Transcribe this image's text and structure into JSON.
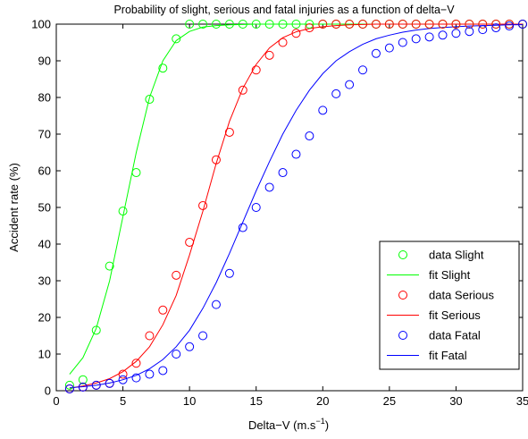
{
  "chart_data": {
    "type": "scatter",
    "title": "Probability of slight, serious and fatal injuries as a function of delta−V",
    "xlabel": "Delta−V (m.s",
    "xlabel_sup": "−1",
    "xlabel_suffix": ")",
    "ylabel": "Accident rate (%)",
    "xlim": [
      0,
      35
    ],
    "ylim": [
      0,
      100
    ],
    "xticks": [
      0,
      5,
      10,
      15,
      20,
      25,
      30,
      35
    ],
    "yticks": [
      0,
      10,
      20,
      30,
      40,
      50,
      60,
      70,
      80,
      90,
      100
    ],
    "grid": false,
    "legend_position": "bottom-right",
    "series": [
      {
        "name": "data Slight",
        "kind": "markers",
        "color": "#00ff00",
        "x": [
          1,
          2,
          3,
          4,
          5,
          6,
          7,
          8,
          9,
          10,
          11,
          12,
          13,
          14,
          15,
          16,
          17,
          18,
          19,
          20,
          21,
          22,
          23,
          24,
          25,
          26,
          27,
          28,
          29,
          30,
          31,
          32,
          33,
          34,
          35
        ],
        "y": [
          1.5,
          3,
          16.5,
          34,
          49,
          59.5,
          79.5,
          88,
          96,
          100,
          100,
          100,
          100,
          100,
          100,
          100,
          100,
          100,
          100,
          100,
          100,
          100,
          100,
          100,
          100,
          100,
          100,
          100,
          100,
          100,
          100,
          100,
          100,
          100,
          100
        ]
      },
      {
        "name": "fit Slight",
        "kind": "line",
        "color": "#00ff00",
        "x": [
          1,
          2,
          3,
          4,
          5,
          6,
          7,
          8,
          9,
          10,
          11,
          12,
          13,
          14,
          15,
          16,
          17,
          18,
          19,
          20,
          21,
          22,
          23,
          24,
          25,
          26,
          27,
          28,
          29,
          30,
          31,
          32,
          33,
          34,
          35
        ],
        "y": [
          4.5,
          9,
          17,
          30,
          47.5,
          65,
          80,
          90,
          95.5,
          98,
          99.2,
          99.6,
          99.8,
          99.9,
          100,
          100,
          100,
          100,
          100,
          100,
          100,
          100,
          100,
          100,
          100,
          100,
          100,
          100,
          100,
          100,
          100,
          100,
          100,
          100,
          100
        ]
      },
      {
        "name": "data Serious",
        "kind": "markers",
        "color": "#ff0000",
        "x": [
          1,
          2,
          3,
          4,
          5,
          6,
          7,
          8,
          9,
          10,
          11,
          12,
          13,
          14,
          15,
          16,
          17,
          18,
          19,
          20,
          21,
          22,
          23,
          24,
          25,
          26,
          27,
          28,
          29,
          30,
          31,
          32,
          33,
          34,
          35
        ],
        "y": [
          0.5,
          1,
          1.5,
          2,
          4.5,
          7.5,
          15,
          22,
          31.5,
          40.5,
          50.5,
          63,
          70.5,
          82,
          87.5,
          91.5,
          95,
          97.5,
          99,
          100,
          100,
          100,
          100,
          100,
          100,
          100,
          100,
          100,
          100,
          100,
          100,
          100,
          100,
          100,
          100
        ]
      },
      {
        "name": "fit Serious",
        "kind": "line",
        "color": "#ff0000",
        "x": [
          1,
          2,
          3,
          4,
          5,
          6,
          7,
          8,
          9,
          10,
          11,
          12,
          13,
          14,
          15,
          16,
          17,
          18,
          19,
          20,
          21,
          22,
          23,
          24,
          25,
          26,
          27,
          28,
          29,
          30,
          31,
          32,
          33,
          34,
          35
        ],
        "y": [
          0.7,
          1.3,
          2.1,
          3.3,
          5.2,
          8,
          12,
          18,
          26,
          37,
          49,
          62,
          73.5,
          82.5,
          89,
          93.5,
          96.3,
          97.9,
          98.8,
          99.3,
          99.6,
          99.8,
          99.9,
          100,
          100,
          100,
          100,
          100,
          100,
          100,
          100,
          100,
          100,
          100,
          100
        ]
      },
      {
        "name": "data Fatal",
        "kind": "markers",
        "color": "#0000ff",
        "x": [
          1,
          2,
          3,
          4,
          5,
          6,
          7,
          8,
          9,
          10,
          11,
          12,
          13,
          14,
          15,
          16,
          17,
          18,
          19,
          20,
          21,
          22,
          23,
          24,
          25,
          26,
          27,
          28,
          29,
          30,
          31,
          32,
          33,
          34,
          35
        ],
        "y": [
          0.5,
          1,
          1.5,
          2,
          3,
          3.5,
          4.5,
          5.5,
          10,
          12,
          15,
          23.5,
          32,
          44.5,
          50,
          55.5,
          59.5,
          64.5,
          69.5,
          76.5,
          81,
          83.5,
          87.5,
          92,
          93.5,
          95,
          96,
          96.5,
          97,
          97.5,
          98,
          98.5,
          99,
          99.5,
          100
        ]
      },
      {
        "name": "fit Fatal",
        "kind": "line",
        "color": "#0000ff",
        "x": [
          1,
          2,
          3,
          4,
          5,
          6,
          7,
          8,
          9,
          10,
          11,
          12,
          13,
          14,
          15,
          16,
          17,
          18,
          19,
          20,
          21,
          22,
          23,
          24,
          25,
          26,
          27,
          28,
          29,
          30,
          31,
          32,
          33,
          34,
          35
        ],
        "y": [
          0.8,
          1.1,
          1.5,
          2.1,
          3,
          4.2,
          6,
          8.5,
          12,
          16.5,
          22.5,
          29.5,
          37.5,
          46,
          54.5,
          62.5,
          70,
          76.5,
          82,
          86.5,
          90,
          92.5,
          94.5,
          96,
          97,
          97.8,
          98.4,
          98.8,
          99.1,
          99.3,
          99.5,
          99.6,
          99.7,
          99.8,
          99.85
        ]
      }
    ]
  }
}
